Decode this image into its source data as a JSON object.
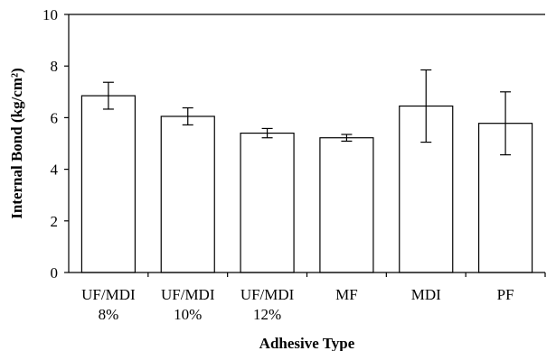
{
  "chart_data": {
    "type": "bar",
    "xlabel": "Adhesive Type",
    "ylabel": "Internal Bond (kg/cm²)",
    "ylim": [
      0,
      10
    ],
    "yticks": [
      0,
      2,
      4,
      6,
      8,
      10
    ],
    "categories": [
      [
        "UF/MDI",
        "8%"
      ],
      [
        "UF/MDI",
        "10%"
      ],
      [
        "UF/MDI",
        "12%"
      ],
      [
        "MF"
      ],
      [
        "MDI"
      ],
      [
        "PF"
      ]
    ],
    "values": [
      6.85,
      6.05,
      5.4,
      5.22,
      6.45,
      5.78
    ],
    "error": [
      0.52,
      0.33,
      0.18,
      0.13,
      1.4,
      1.22
    ],
    "grid": false,
    "legend": "none",
    "colors": {
      "bar_fill": "#ffffff",
      "bar_stroke": "#000000"
    }
  }
}
